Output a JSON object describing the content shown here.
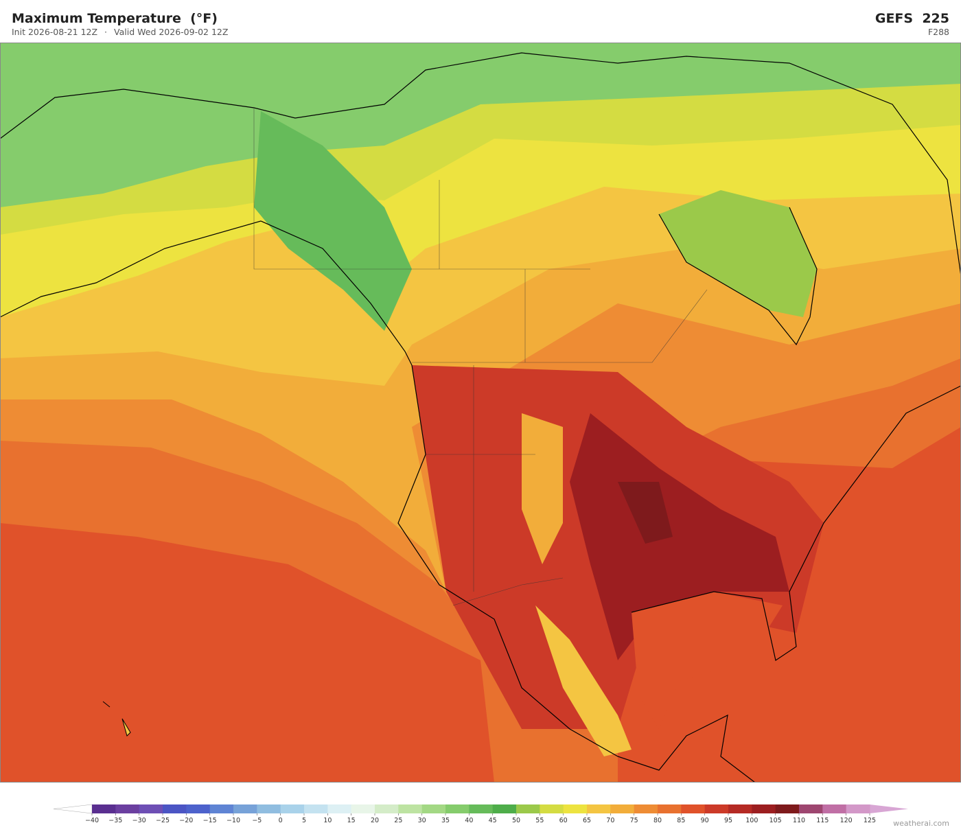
{
  "header": {
    "title": "Maximum Temperature  (°F)",
    "init": "Init 2026-08-21 12Z",
    "separator": "·",
    "valid": "Valid Wed 2026-09-02 12Z",
    "model": "GEFS  225",
    "forecast_hour": "F288"
  },
  "colorbar": {
    "ticks": [
      {
        "value": -40,
        "label": "−40"
      },
      {
        "value": -35,
        "label": "−35"
      },
      {
        "value": -30,
        "label": "−30"
      },
      {
        "value": -25,
        "label": "−25"
      },
      {
        "value": -20,
        "label": "−20"
      },
      {
        "value": -15,
        "label": "−15"
      },
      {
        "value": -10,
        "label": "−10"
      },
      {
        "value": -5,
        "label": "−5"
      },
      0,
      5,
      10,
      15,
      20,
      25,
      30,
      35,
      40,
      45,
      50,
      55,
      60,
      65,
      70,
      75,
      80,
      85,
      90,
      95,
      100,
      105,
      110,
      115,
      120,
      125
    ],
    "colors": [
      "#5a2f90",
      "#6b3fa0",
      "#6e4fb5",
      "#4b55c4",
      "#4d62cc",
      "#5f84d4",
      "#77a2d8",
      "#90bde0",
      "#a9d2ea",
      "#c4e2f0",
      "#ddf0f4",
      "#e8f5e8",
      "#d4ecc8",
      "#bde3a2",
      "#a3d884",
      "#85cc6c",
      "#66bb5a",
      "#4ead4a",
      "#9bc94a",
      "#d4dc42",
      "#ede340",
      "#f4c542",
      "#f2ad3a",
      "#ee8c34",
      "#e8712f",
      "#e0522a",
      "#cc3a28",
      "#b52a24",
      "#9c1e20",
      "#7e1a1c",
      "#9e4670",
      "#c06fa5",
      "#d398c8"
    ],
    "under_color": "#ffffff",
    "over_color": "#d8a6d4"
  },
  "footer": {
    "brand": "weatherai.com"
  }
}
